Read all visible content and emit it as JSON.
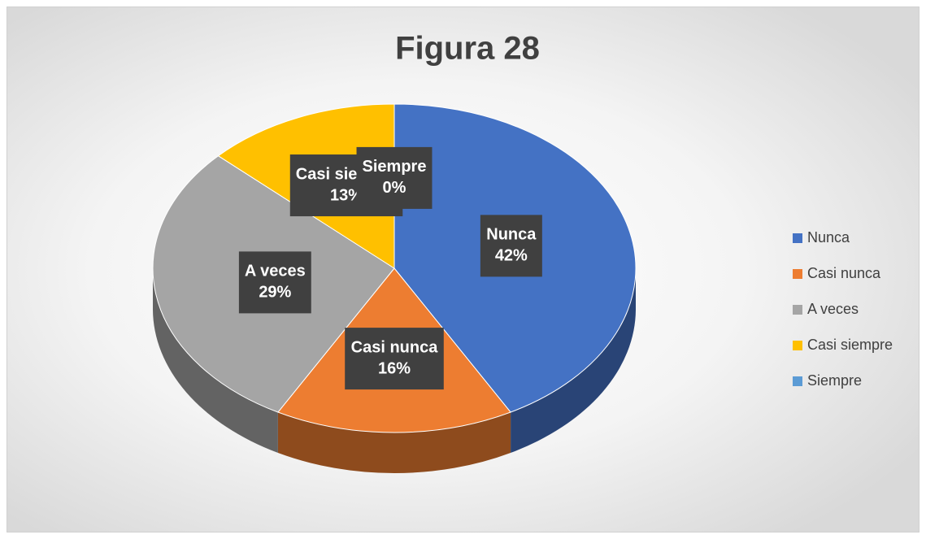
{
  "chart_data": {
    "type": "pie",
    "title": "Figura 28",
    "categories": [
      "Nunca",
      "Casi nunca",
      "A veces",
      "Casi siempre",
      "Siempre"
    ],
    "values": [
      42,
      16,
      29,
      13,
      0
    ],
    "value_labels": [
      "42%",
      "16%",
      "29%",
      "13%",
      "0%"
    ],
    "colors": [
      "#4472c4",
      "#ed7d31",
      "#a5a5a5",
      "#ffc000",
      "#5b9bd5"
    ],
    "legend": "right"
  }
}
